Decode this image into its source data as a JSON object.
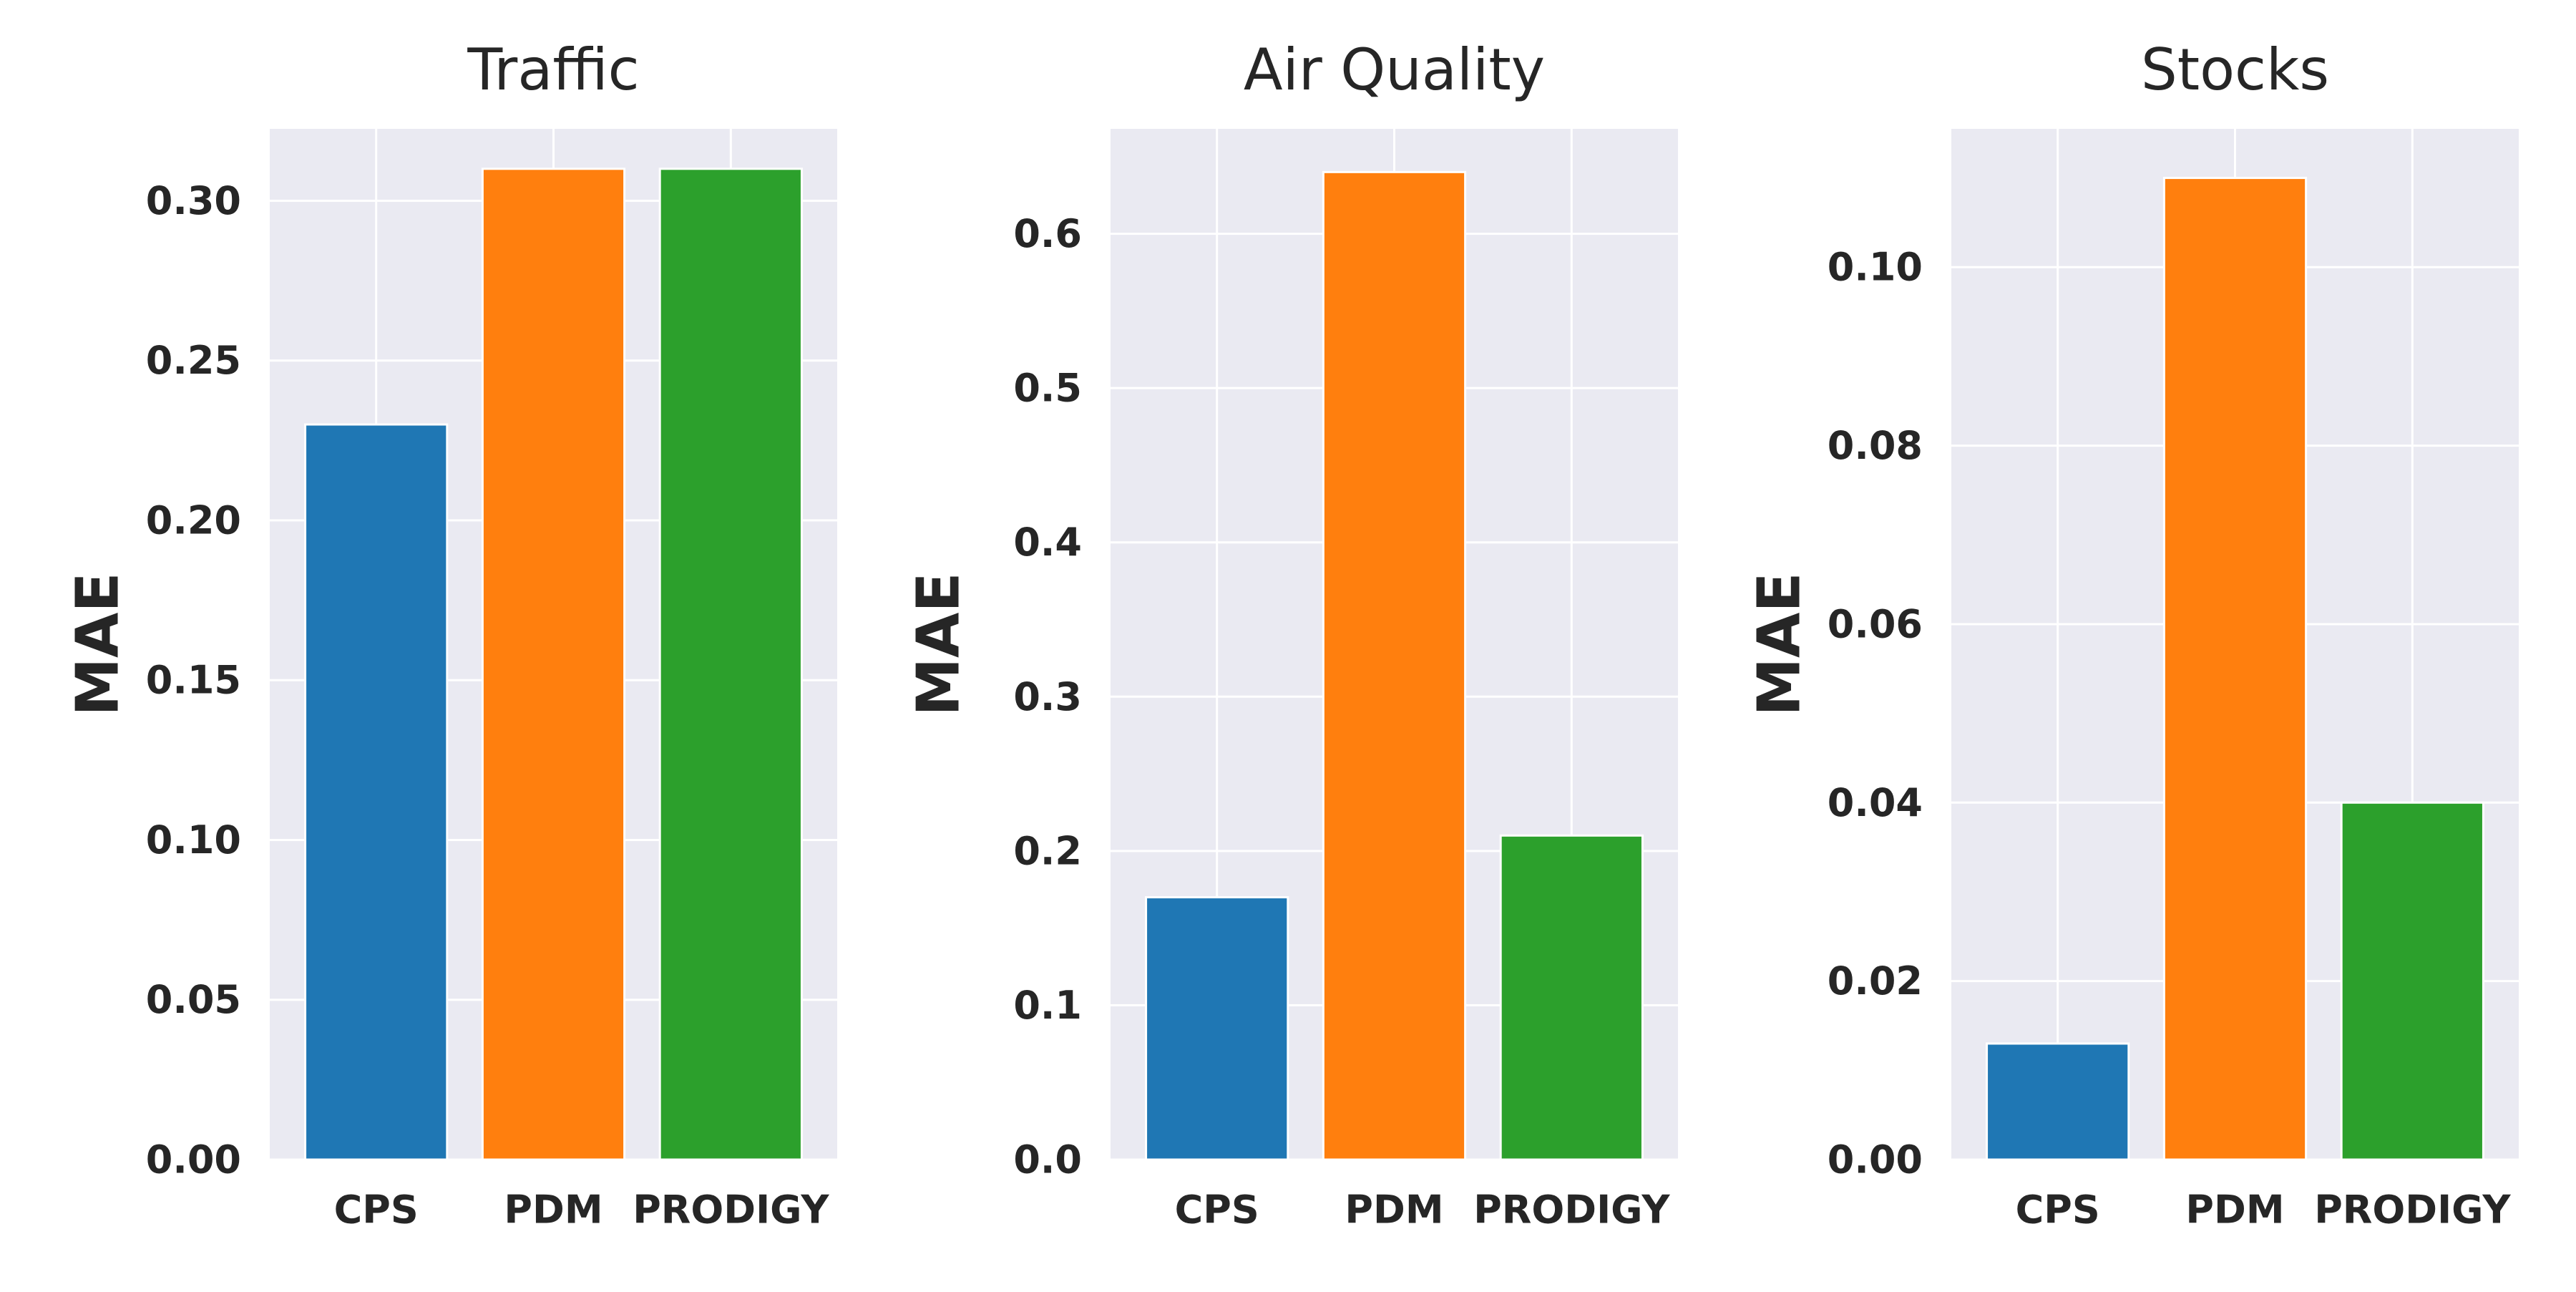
{
  "chart_data": [
    {
      "type": "bar",
      "title": "Traffic",
      "ylabel": "MAE",
      "xlabel": "",
      "categories": [
        "CPS",
        "PDM",
        "PRODIGY"
      ],
      "values": [
        0.23,
        0.31,
        0.31
      ],
      "colors": [
        "#1f77b4",
        "#ff7f0e",
        "#2ca02c"
      ],
      "ylim": [
        0,
        0.3225
      ],
      "yticks": [
        0.0,
        0.05,
        0.1,
        0.15,
        0.2,
        0.25,
        0.3
      ],
      "ytick_labels": [
        "0.00",
        "0.05",
        "0.10",
        "0.15",
        "0.20",
        "0.25",
        "0.30"
      ],
      "grid": true
    },
    {
      "type": "bar",
      "title": "Air Quality",
      "ylabel": "MAE",
      "xlabel": "",
      "categories": [
        "CPS",
        "PDM",
        "PRODIGY"
      ],
      "values": [
        0.17,
        0.64,
        0.21
      ],
      "colors": [
        "#1f77b4",
        "#ff7f0e",
        "#2ca02c"
      ],
      "ylim": [
        0,
        0.668
      ],
      "yticks": [
        0.0,
        0.1,
        0.2,
        0.3,
        0.4,
        0.5,
        0.6
      ],
      "ytick_labels": [
        "0.0",
        "0.1",
        "0.2",
        "0.3",
        "0.4",
        "0.5",
        "0.6"
      ],
      "grid": true
    },
    {
      "type": "bar",
      "title": "Stocks",
      "ylabel": "MAE",
      "xlabel": "",
      "categories": [
        "CPS",
        "PDM",
        "PRODIGY"
      ],
      "values": [
        0.013,
        0.11,
        0.04
      ],
      "colors": [
        "#1f77b4",
        "#ff7f0e",
        "#2ca02c"
      ],
      "ylim": [
        0,
        0.1155
      ],
      "yticks": [
        0.0,
        0.02,
        0.04,
        0.06,
        0.08,
        0.1
      ],
      "ytick_labels": [
        "0.00",
        "0.02",
        "0.04",
        "0.06",
        "0.08",
        "0.10"
      ],
      "grid": true
    }
  ]
}
